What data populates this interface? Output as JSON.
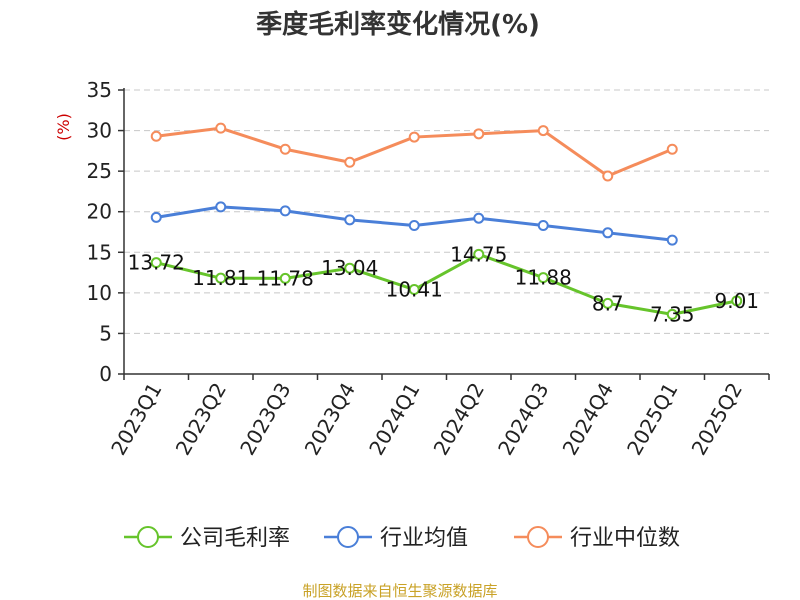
{
  "chart_data": {
    "type": "line",
    "title": "季度毛利率变化情况(%)",
    "ylabel": "(%)",
    "xlabel": "",
    "ylim": [
      0,
      35
    ],
    "yticks": [
      0,
      5,
      10,
      15,
      20,
      25,
      30,
      35
    ],
    "grid": true,
    "legend_position": "bottom",
    "categories": [
      "2023Q1",
      "2023Q2",
      "2023Q3",
      "2023Q4",
      "2024Q1",
      "2024Q2",
      "2024Q3",
      "2024Q4",
      "2025Q1",
      "2025Q2"
    ],
    "series": [
      {
        "name": "公司毛利率",
        "color": "#66c42b",
        "values": [
          13.72,
          11.81,
          11.78,
          13.04,
          10.41,
          14.75,
          11.88,
          8.7,
          7.35,
          9.01
        ],
        "labels": [
          "13.72",
          "11.81",
          "11.78",
          "13.04",
          "10.41",
          "14.75",
          "11.88",
          "8.7",
          "7.35",
          "9.01"
        ]
      },
      {
        "name": "行业均值",
        "color": "#4a7fd8",
        "values": [
          19.3,
          20.6,
          20.1,
          19.0,
          18.3,
          19.2,
          18.3,
          17.4,
          16.5,
          null
        ]
      },
      {
        "name": "行业中位数",
        "color": "#f58c5b",
        "values": [
          29.3,
          30.3,
          27.7,
          26.1,
          29.2,
          29.6,
          30.0,
          24.4,
          27.7,
          null
        ]
      }
    ],
    "source": "制图数据来自恒生聚源数据库"
  }
}
